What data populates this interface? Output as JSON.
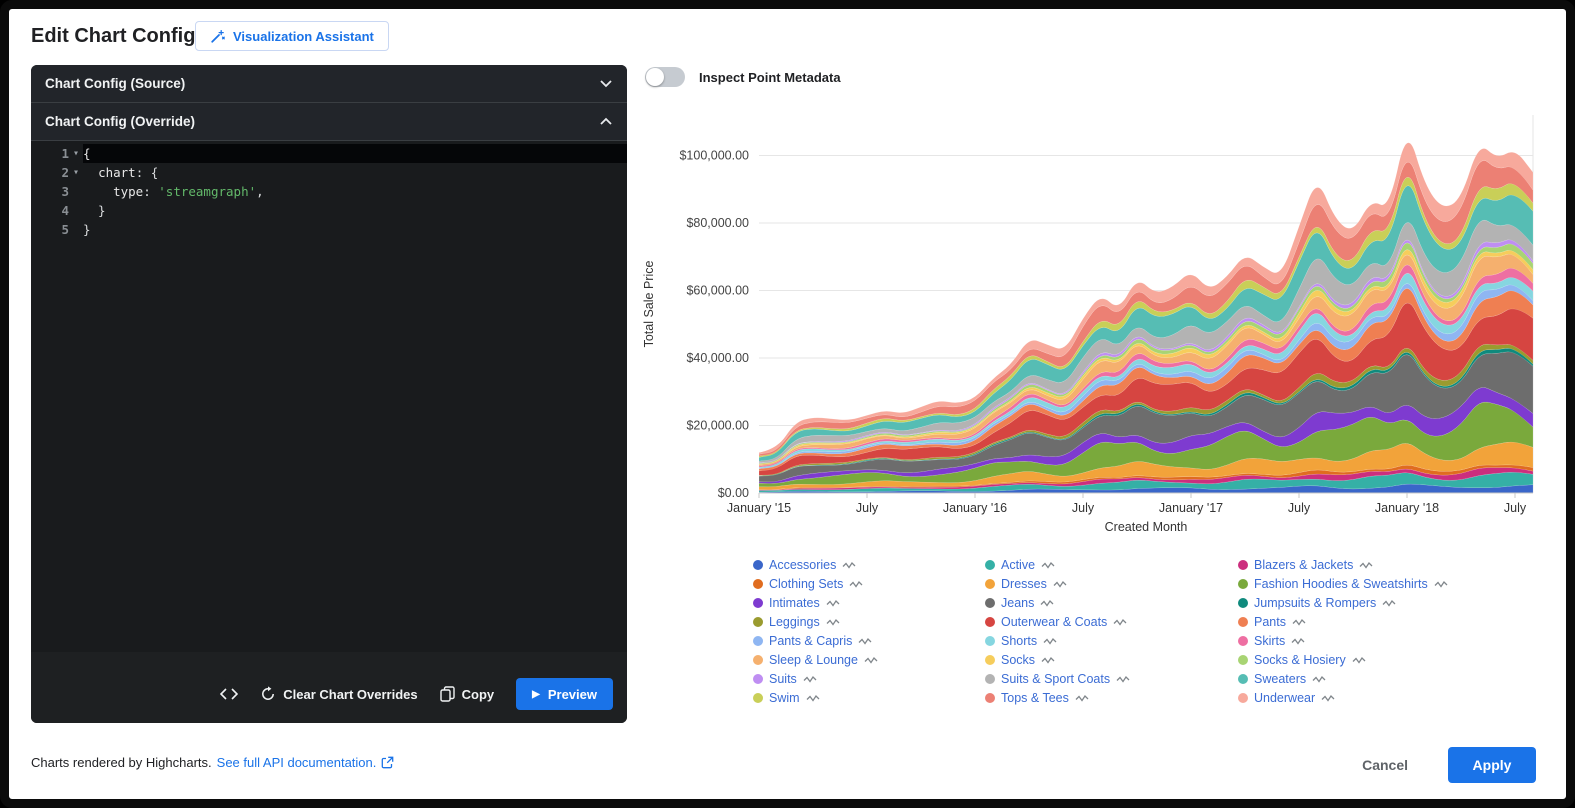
{
  "colors": {
    "accent": "#1a73e8",
    "legend_label": "#3b6cd4"
  },
  "header": {
    "title": "Edit Chart Config",
    "assistant_button": "Visualization Assistant"
  },
  "editor": {
    "source_header": "Chart Config (Source)",
    "override_header": "Chart Config (Override)",
    "code_lines": [
      {
        "num": "1",
        "fold": true,
        "active": true,
        "tokens": [
          {
            "text": "{",
            "cls": "key"
          }
        ]
      },
      {
        "num": "2",
        "fold": true,
        "active": false,
        "tokens": [
          {
            "text": "  ",
            "cls": ""
          },
          {
            "text": "chart",
            "cls": "key"
          },
          {
            "text": ": {",
            "cls": ""
          }
        ]
      },
      {
        "num": "3",
        "fold": false,
        "active": false,
        "tokens": [
          {
            "text": "    ",
            "cls": ""
          },
          {
            "text": "type",
            "cls": "key"
          },
          {
            "text": ": ",
            "cls": ""
          },
          {
            "text": "'streamgraph'",
            "cls": "str"
          },
          {
            "text": ",",
            "cls": ""
          }
        ]
      },
      {
        "num": "4",
        "fold": false,
        "active": false,
        "tokens": [
          {
            "text": "  }",
            "cls": ""
          }
        ]
      },
      {
        "num": "5",
        "fold": false,
        "active": false,
        "tokens": [
          {
            "text": "}",
            "cls": ""
          }
        ]
      }
    ],
    "toolbar": {
      "clear": "Clear Chart Overrides",
      "copy": "Copy",
      "preview": "Preview"
    }
  },
  "inspect_toggle": {
    "label": "Inspect Point Metadata",
    "on": false
  },
  "chart_data": {
    "type": "area",
    "stacking": "normal",
    "title": "",
    "xlabel": "Created Month",
    "ylabel": "Total Sale Price",
    "ylim": [
      0,
      112000
    ],
    "grid": "horizontal",
    "legend_position": "bottom",
    "num_points": 44,
    "x_range": {
      "start": "January 2015",
      "end": "August 2018"
    },
    "x_tick_indices": [
      0,
      6,
      12,
      18,
      24,
      30,
      36,
      42
    ],
    "x_tick_labels": [
      "January '15",
      "July",
      "January '16",
      "July",
      "January '17",
      "July",
      "January '18",
      "July"
    ],
    "y_tick_values": [
      0,
      20000,
      40000,
      60000,
      80000,
      100000
    ],
    "y_tick_labels": [
      "$0.00",
      "$20,000.00",
      "$40,000.00",
      "$60,000.00",
      "$80,000.00",
      "$100,000.00"
    ],
    "totals": [
      12000,
      13000,
      21000,
      22500,
      22000,
      21500,
      23000,
      24500,
      23500,
      25500,
      27500,
      26500,
      28000,
      34000,
      38000,
      46000,
      44000,
      42000,
      52000,
      59000,
      54000,
      64000,
      59000,
      61000,
      66000,
      60000,
      64000,
      71000,
      67000,
      64000,
      79000,
      94000,
      81000,
      77000,
      87000,
      84000,
      109000,
      91000,
      84000,
      87000,
      104000,
      99000,
      102000,
      95000
    ],
    "series": [
      {
        "name": "Accessories",
        "color": "#3a66c9",
        "weight": 0.02
      },
      {
        "name": "Active",
        "color": "#35b0a6",
        "weight": 0.03
      },
      {
        "name": "Blazers & Jackets",
        "color": "#cc2e7e",
        "weight": 0.015
      },
      {
        "name": "Clothing Sets",
        "color": "#e06c1f",
        "weight": 0.01
      },
      {
        "name": "Dresses",
        "color": "#f2a33a",
        "weight": 0.05
      },
      {
        "name": "Fashion Hoodies & Sweatshirts",
        "color": "#7aa93c",
        "weight": 0.09
      },
      {
        "name": "Intimates",
        "color": "#7e3bd0",
        "weight": 0.045
      },
      {
        "name": "Jeans",
        "color": "#6d6d6d",
        "weight": 0.11
      },
      {
        "name": "Jumpsuits & Rompers",
        "color": "#0f8a7d",
        "weight": 0.008
      },
      {
        "name": "Leggings",
        "color": "#9a9b2f",
        "weight": 0.015
      },
      {
        "name": "Outerwear & Coats",
        "color": "#d64541",
        "weight": 0.1
      },
      {
        "name": "Pants",
        "color": "#ef7f52",
        "weight": 0.04
      },
      {
        "name": "Pants & Capris",
        "color": "#8fb6f2",
        "weight": 0.02
      },
      {
        "name": "Shorts",
        "color": "#86d6e0",
        "weight": 0.025
      },
      {
        "name": "Skirts",
        "color": "#ee6fa2",
        "weight": 0.02
      },
      {
        "name": "Sleep & Lounge",
        "color": "#f5b06e",
        "weight": 0.04
      },
      {
        "name": "Socks",
        "color": "#f6cd5c",
        "weight": 0.015
      },
      {
        "name": "Socks & Hosiery",
        "color": "#a8d473",
        "weight": 0.015
      },
      {
        "name": "Suits",
        "color": "#bf8ef2",
        "weight": 0.01
      },
      {
        "name": "Suits & Sport Coats",
        "color": "#b3b3b3",
        "weight": 0.06
      },
      {
        "name": "Sweaters",
        "color": "#56bdb4",
        "weight": 0.08
      },
      {
        "name": "Swim",
        "color": "#c9cf58",
        "weight": 0.025
      },
      {
        "name": "Tops & Tees",
        "color": "#ec8074",
        "weight": 0.06
      },
      {
        "name": "Underwear",
        "color": "#f7a99c",
        "weight": 0.045
      }
    ]
  },
  "footer": {
    "credit": "Charts rendered by Highcharts.",
    "link": "See full API documentation.",
    "cancel": "Cancel",
    "apply": "Apply"
  }
}
